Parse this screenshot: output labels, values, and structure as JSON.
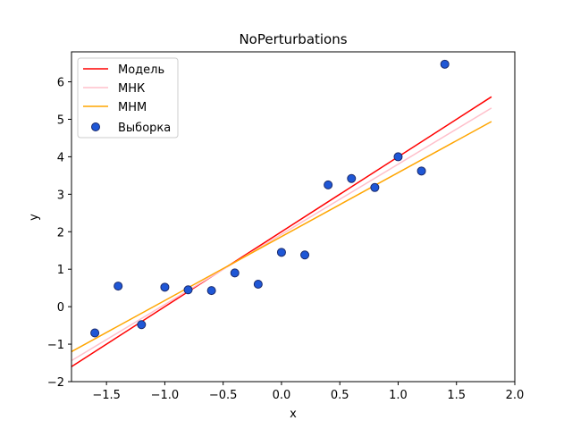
{
  "chart_data": {
    "type": "scatter",
    "title": "NoPerturbations",
    "xlabel": "x",
    "ylabel": "y",
    "xlim": [
      -1.8,
      2.0
    ],
    "ylim": [
      -2.0,
      6.8
    ],
    "xticks": [
      -1.5,
      -1.0,
      -0.5,
      0.0,
      0.5,
      1.0,
      1.5,
      2.0
    ],
    "xtick_labels": [
      "−1.5",
      "−1.0",
      "−0.5",
      "0.0",
      "0.5",
      "1.0",
      "1.5",
      "2.0"
    ],
    "yticks": [
      -2,
      -1,
      0,
      1,
      2,
      3,
      4,
      5,
      6
    ],
    "ytick_labels": [
      "−2",
      "−1",
      "0",
      "1",
      "2",
      "3",
      "4",
      "5",
      "6"
    ],
    "grid": false,
    "legend_position": "top-left",
    "lines": [
      {
        "name": "Модель",
        "color": "#ff0000",
        "x": [
          -1.8,
          1.8
        ],
        "y": [
          -1.6,
          5.6
        ]
      },
      {
        "name": "МНК",
        "color": "#ffc0cb",
        "x": [
          -1.8,
          1.8
        ],
        "y": [
          -1.44,
          5.3
        ]
      },
      {
        "name": "МНМ",
        "color": "#ffa500",
        "x": [
          -1.8,
          1.8
        ],
        "y": [
          -1.2,
          4.94
        ]
      }
    ],
    "scatter": {
      "name": "Выборка",
      "fill": "#1f57d6",
      "edge": "#1a2a6c",
      "x": [
        -1.6,
        -1.4,
        -1.2,
        -1.0,
        -0.8,
        -0.6,
        -0.4,
        -0.2,
        0.0,
        0.2,
        0.4,
        0.6,
        0.8,
        1.0,
        1.2,
        1.4
      ],
      "y": [
        -0.7,
        0.55,
        -0.48,
        0.52,
        0.45,
        0.43,
        0.9,
        0.6,
        1.45,
        1.38,
        3.25,
        3.42,
        3.18,
        4.0,
        3.62,
        6.47
      ]
    }
  }
}
